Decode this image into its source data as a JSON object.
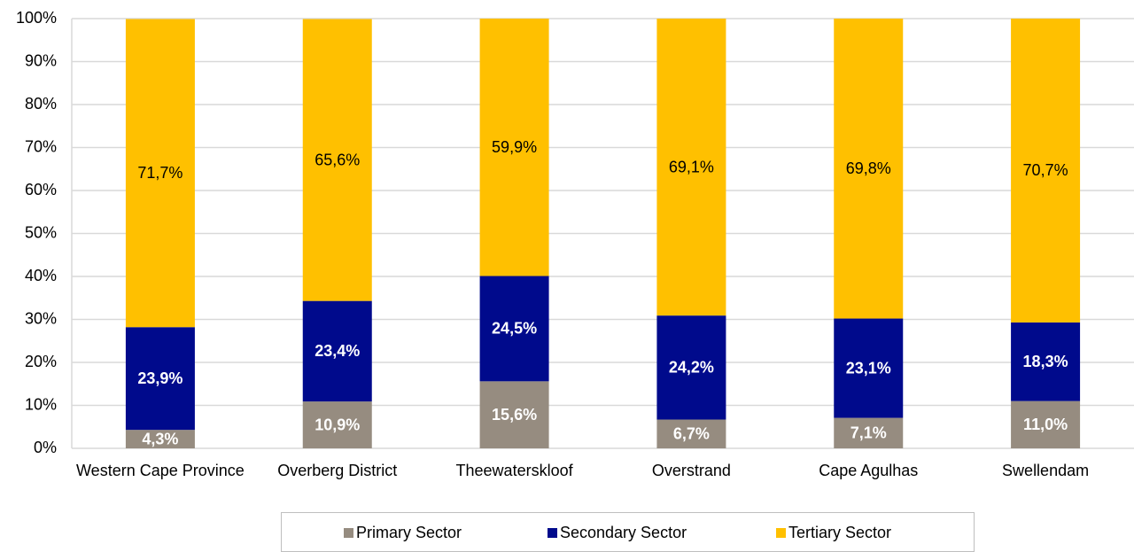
{
  "chart_data": {
    "type": "stacked_bar",
    "categories": [
      "Western Cape Province",
      "Overberg District",
      "Theewaterskloof",
      "Overstrand",
      "Cape Agulhas",
      "Swellendam"
    ],
    "series": [
      {
        "name": "Primary Sector",
        "color": "#968c80",
        "label_color": "#ffffff",
        "values": [
          4.3,
          10.9,
          15.6,
          6.7,
          7.1,
          11.0
        ],
        "value_labels": [
          "4,3%",
          "10,9%",
          "15,6%",
          "6,7%",
          "7,1%",
          "11,0%"
        ]
      },
      {
        "name": "Secondary Sector",
        "color": "#000a8c",
        "label_color": "#ffffff",
        "values": [
          23.9,
          23.4,
          24.5,
          24.2,
          23.1,
          18.3
        ],
        "value_labels": [
          "23,9%",
          "23,4%",
          "24,5%",
          "24,2%",
          "23,1%",
          "18,3%"
        ]
      },
      {
        "name": "Tertiary Sector",
        "color": "#ffc000",
        "label_color": "#000000",
        "values": [
          71.7,
          65.6,
          59.9,
          69.1,
          69.8,
          70.7
        ],
        "value_labels": [
          "71,7%",
          "65,6%",
          "59,9%",
          "69,1%",
          "69,8%",
          "70,7%"
        ]
      }
    ],
    "ylim": [
      0,
      100
    ],
    "yticks": [
      {
        "value": 0,
        "label": "0%"
      },
      {
        "value": 10,
        "label": "10%"
      },
      {
        "value": 20,
        "label": "20%"
      },
      {
        "value": 30,
        "label": "30%"
      },
      {
        "value": 40,
        "label": "40%"
      },
      {
        "value": 50,
        "label": "50%"
      },
      {
        "value": 60,
        "label": "60%"
      },
      {
        "value": 70,
        "label": "70%"
      },
      {
        "value": 80,
        "label": "80%"
      },
      {
        "value": 90,
        "label": "90%"
      },
      {
        "value": 100,
        "label": "100%"
      }
    ],
    "grid": true,
    "legend": "bottom"
  }
}
